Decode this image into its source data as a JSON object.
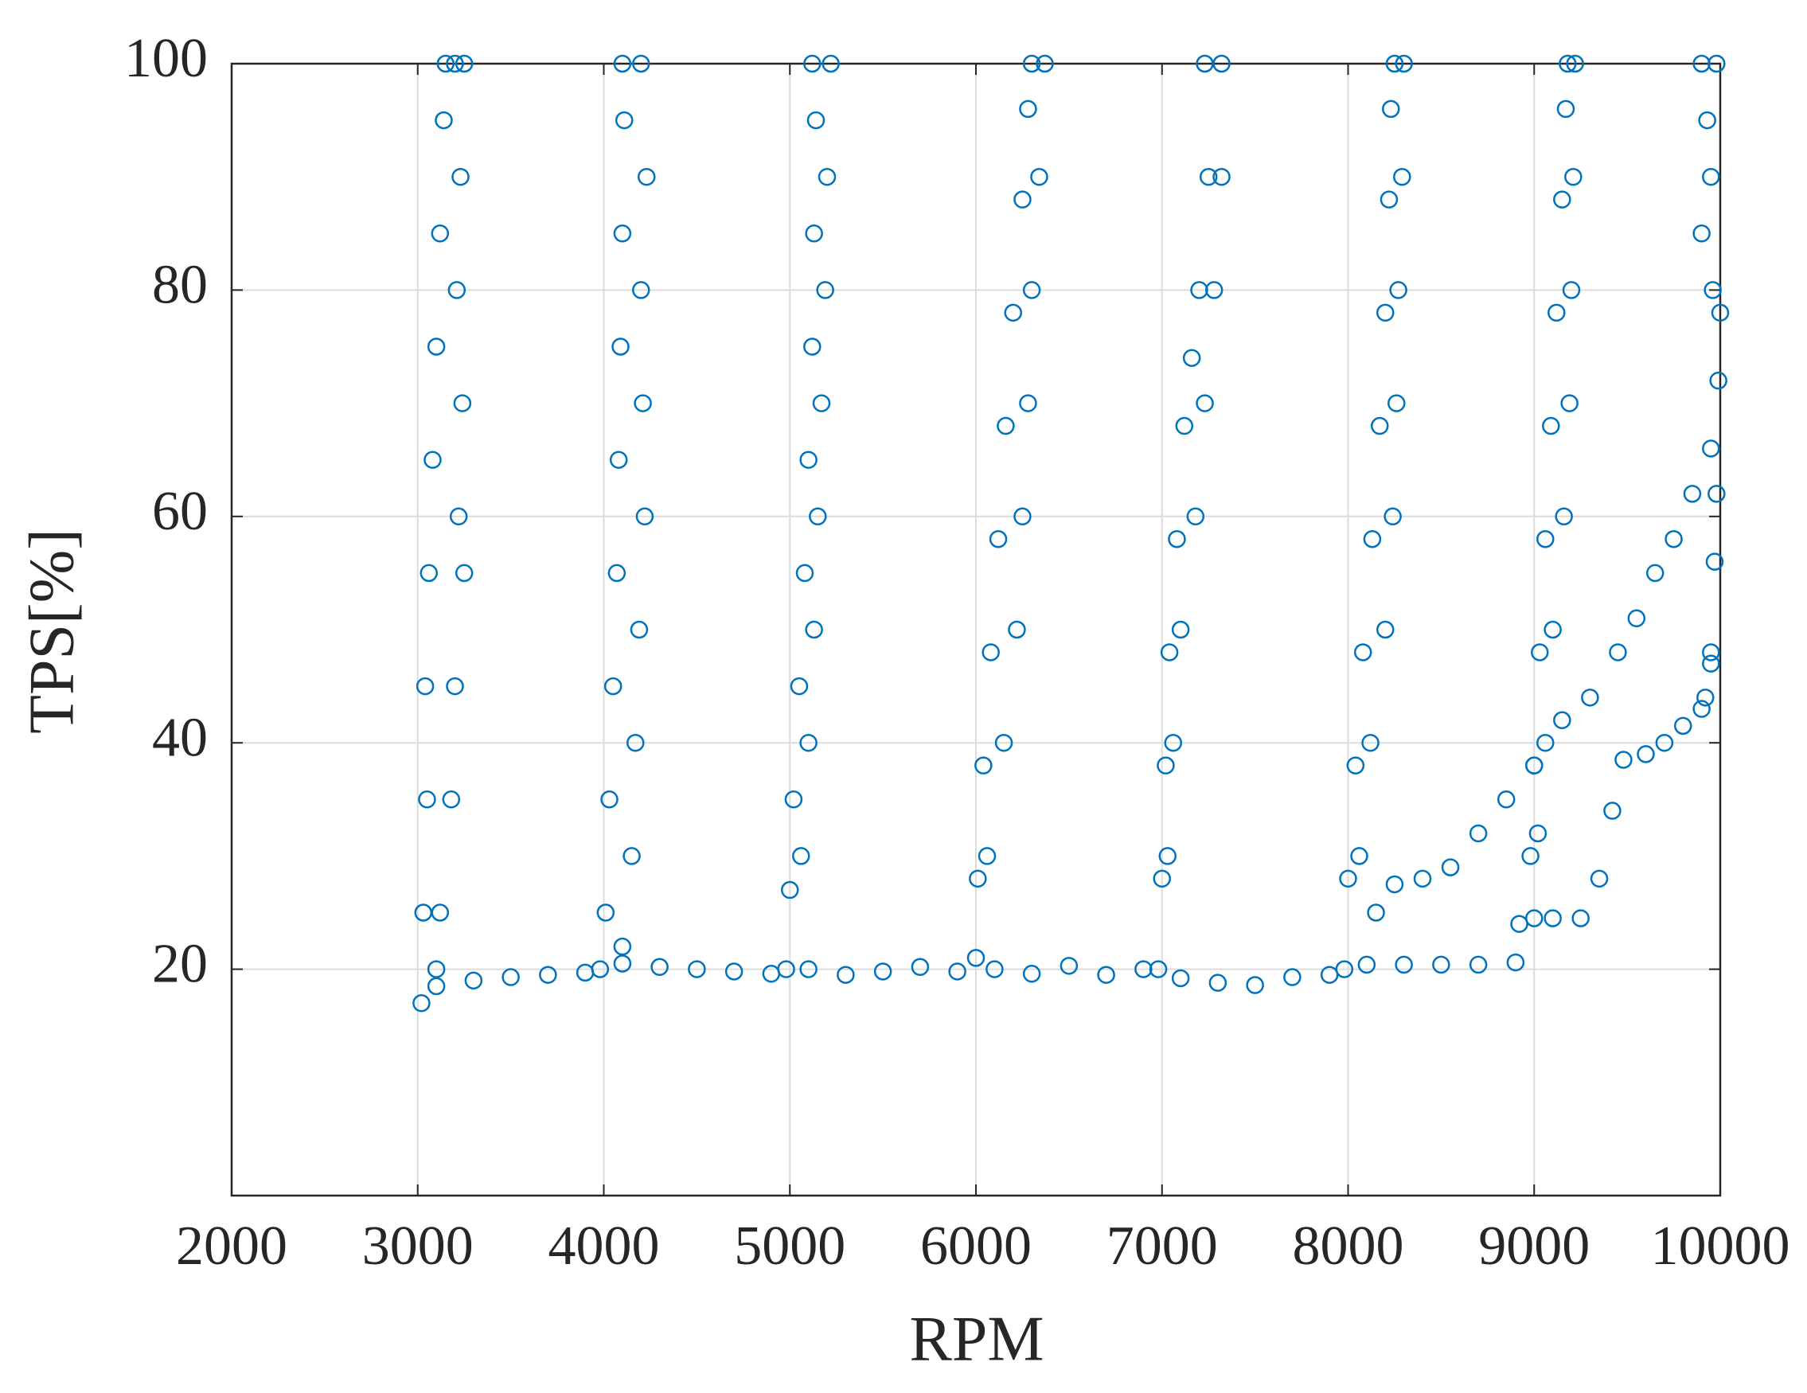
{
  "chart_data": {
    "type": "scatter",
    "x_label": "RPM",
    "y_label": "TPS[%]",
    "color": "#0072bd",
    "grid": true,
    "xlim": [
      2000,
      10000
    ],
    "xticks": [
      2000,
      3000,
      4000,
      5000,
      6000,
      7000,
      8000,
      9000,
      10000
    ],
    "ylim": [
      0,
      100
    ],
    "yticks": [
      20,
      40,
      60,
      80,
      100
    ],
    "x": [
      3020,
      3030,
      3050,
      3040,
      3060,
      3080,
      3100,
      3120,
      3140,
      3150,
      3200,
      3250,
      3230,
      3210,
      3240,
      3220,
      3250,
      3200,
      3180,
      3120,
      3100,
      3980,
      4010,
      4030,
      4050,
      4070,
      4080,
      4090,
      4100,
      4110,
      4100,
      4200,
      4230,
      4200,
      4210,
      4220,
      4190,
      4170,
      4150,
      4100,
      4980,
      5000,
      5020,
      5050,
      5080,
      5100,
      5120,
      5130,
      5140,
      5120,
      5220,
      5200,
      5190,
      5170,
      5150,
      5130,
      5100,
      5060,
      6000,
      6010,
      6040,
      6080,
      6120,
      6160,
      6200,
      6250,
      6280,
      6300,
      6370,
      6340,
      6300,
      6280,
      6250,
      6220,
      6150,
      6060,
      6980,
      7000,
      7020,
      7040,
      7080,
      7120,
      7160,
      7200,
      7250,
      7230,
      7320,
      7320,
      7280,
      7230,
      7180,
      7100,
      7060,
      7030,
      7980,
      8000,
      8040,
      8080,
      8130,
      8170,
      8200,
      8220,
      8230,
      8250,
      8300,
      8290,
      8270,
      8260,
      8240,
      8200,
      8120,
      8060,
      8920,
      8980,
      9000,
      9030,
      9060,
      9090,
      9120,
      9150,
      9170,
      9180,
      9220,
      9210,
      9200,
      9190,
      9160,
      9100,
      9060,
      9020,
      9900,
      9980,
      9950,
      9960,
      9990,
      9980,
      9970,
      9950,
      9920,
      10000,
      9900,
      9930,
      3100,
      3300,
      3500,
      3700,
      3900,
      4100,
      4300,
      4500,
      4700,
      4900,
      5100,
      5300,
      5500,
      5700,
      5900,
      6100,
      6300,
      6500,
      6700,
      6900,
      7100,
      7300,
      7500,
      7700,
      7900,
      8100,
      8300,
      8500,
      8700,
      8900,
      8150,
      8250,
      8400,
      8550,
      8700,
      8850,
      9000,
      9150,
      9300,
      9450,
      9550,
      9650,
      9750,
      9850,
      9950,
      9000,
      9100,
      9250,
      9350,
      9420,
      9480,
      9600,
      9700,
      9800,
      9900,
      9950
    ],
    "values": [
      17,
      25,
      35,
      45,
      55,
      65,
      75,
      85,
      95,
      100,
      100,
      100,
      90,
      80,
      70,
      60,
      55,
      45,
      35,
      25,
      20,
      20,
      25,
      35,
      45,
      55,
      65,
      75,
      85,
      95,
      100,
      100,
      90,
      80,
      70,
      60,
      50,
      40,
      30,
      22,
      20,
      27,
      35,
      45,
      55,
      65,
      75,
      85,
      95,
      100,
      100,
      90,
      80,
      70,
      60,
      50,
      40,
      30,
      21,
      28,
      38,
      48,
      58,
      68,
      78,
      88,
      96,
      100,
      100,
      90,
      80,
      70,
      60,
      50,
      40,
      30,
      20,
      28,
      38,
      48,
      58,
      68,
      74,
      80,
      90,
      100,
      100,
      90,
      80,
      70,
      60,
      50,
      40,
      30,
      20,
      28,
      38,
      48,
      58,
      68,
      78,
      88,
      96,
      100,
      100,
      90,
      80,
      70,
      60,
      50,
      40,
      30,
      24,
      30,
      38,
      48,
      58,
      68,
      78,
      88,
      96,
      100,
      100,
      90,
      80,
      70,
      60,
      50,
      40,
      32,
      100,
      100,
      90,
      80,
      72,
      62,
      56,
      48,
      44,
      78,
      85,
      95,
      18.5,
      19,
      19.3,
      19.5,
      19.7,
      20.5,
      20.2,
      20,
      19.8,
      19.6,
      20,
      19.5,
      19.8,
      20.2,
      19.8,
      20,
      19.6,
      20.3,
      19.5,
      20,
      19.2,
      18.8,
      18.6,
      19.3,
      19.5,
      20.4,
      20.4,
      20.4,
      20.4,
      20.6,
      25,
      27.5,
      28,
      29,
      32,
      35,
      38,
      42,
      44,
      48,
      51,
      55,
      58,
      62,
      66,
      24.5,
      24.5,
      24.5,
      28,
      34,
      38.5,
      39,
      40,
      41.5,
      43,
      47
    ]
  }
}
